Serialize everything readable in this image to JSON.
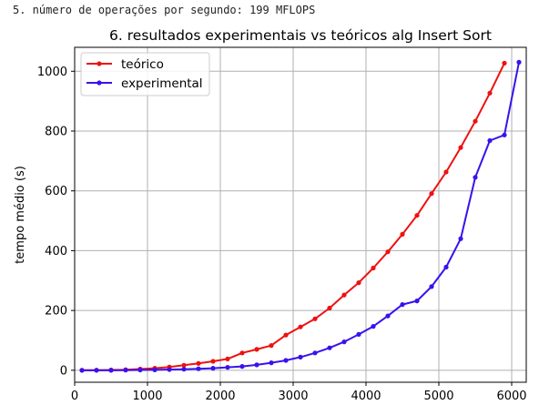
{
  "header": {
    "text": "5. número de operações por segundo: 199 MFLOPS"
  },
  "chart_data": {
    "type": "line",
    "title": "6. resultados experimentais vs teóricos alg Insert Sort",
    "xlabel": "",
    "ylabel": "tempo médio (s)",
    "xlim": [
      0,
      6200
    ],
    "ylim": [
      -40,
      1080
    ],
    "xticks": [
      0,
      1000,
      2000,
      3000,
      4000,
      5000,
      6000
    ],
    "yticks": [
      0,
      200,
      400,
      600,
      800,
      1000
    ],
    "grid": true,
    "legend_position": "top-left",
    "series": [
      {
        "name": "teórico",
        "color": "#ee1111",
        "x": [
          100,
          300,
          500,
          700,
          900,
          1100,
          1300,
          1500,
          1700,
          1900,
          2100,
          2300,
          2500,
          2700,
          2900,
          3100,
          3300,
          3500,
          3700,
          3900,
          4100,
          4300,
          4500,
          4700,
          4900,
          5100,
          5300,
          5500,
          5700,
          5900
        ],
        "values": [
          0.3,
          0.5,
          1,
          2,
          4,
          7,
          11,
          17,
          23,
          30,
          38,
          58,
          70,
          83,
          118,
          145,
          172,
          208,
          252,
          293,
          342,
          396,
          455,
          518,
          591,
          663,
          745,
          833,
          927,
          1027
        ]
      },
      {
        "name": "experimental",
        "color": "#3a11ee",
        "x": [
          100,
          300,
          500,
          700,
          900,
          1100,
          1300,
          1500,
          1700,
          1900,
          2100,
          2300,
          2500,
          2700,
          2900,
          3100,
          3300,
          3500,
          3700,
          3900,
          4100,
          4300,
          4500,
          4700,
          4900,
          5100,
          5300,
          5500,
          5700,
          5900,
          6100
        ],
        "values": [
          0,
          0,
          0,
          0.5,
          1,
          1.5,
          2.5,
          3.5,
          5,
          7,
          10,
          13,
          18,
          25,
          33,
          44,
          58,
          75,
          95,
          120,
          147,
          182,
          220,
          232,
          280,
          345,
          440,
          645,
          768,
          787,
          1030
        ]
      }
    ]
  }
}
